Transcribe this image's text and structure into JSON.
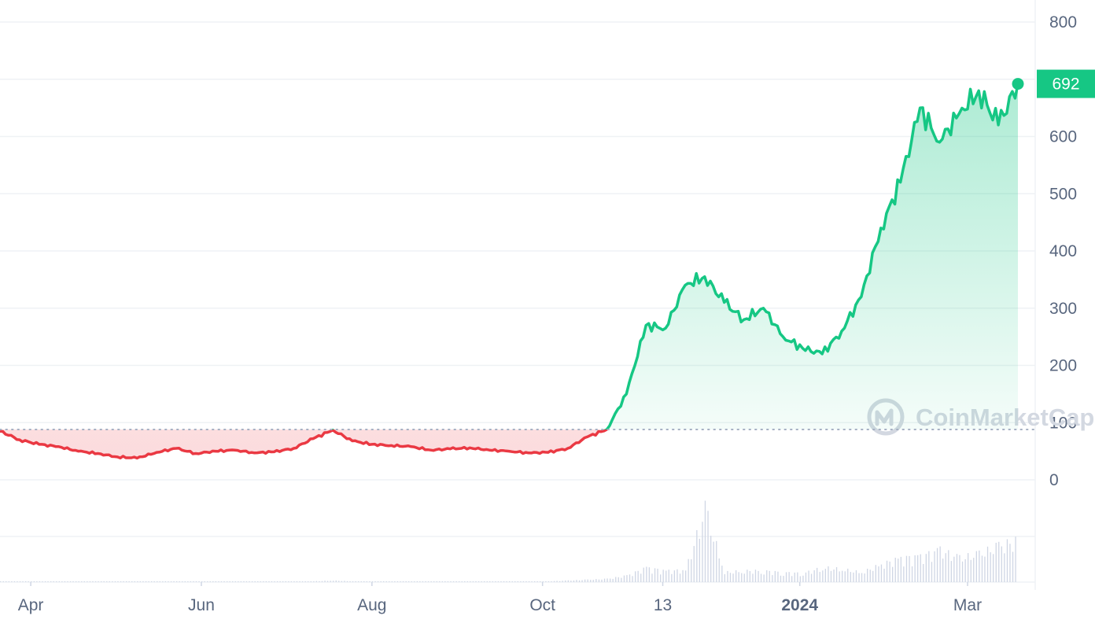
{
  "chart_data": {
    "type": "line",
    "x": [
      "2023-03-21",
      "2023-03-28",
      "2023-04-04",
      "2023-04-11",
      "2023-04-18",
      "2023-04-25",
      "2023-05-02",
      "2023-05-09",
      "2023-05-16",
      "2023-05-23",
      "2023-05-30",
      "2023-06-06",
      "2023-06-13",
      "2023-06-20",
      "2023-06-27",
      "2023-07-04",
      "2023-07-11",
      "2023-07-18",
      "2023-07-25",
      "2023-08-01",
      "2023-08-08",
      "2023-08-15",
      "2023-08-22",
      "2023-08-29",
      "2023-09-05",
      "2023-09-12",
      "2023-09-19",
      "2023-09-26",
      "2023-10-03",
      "2023-10-10",
      "2023-10-17",
      "2023-10-24",
      "2023-10-31",
      "2023-11-07",
      "2023-11-14",
      "2023-11-21",
      "2023-11-28",
      "2023-12-05",
      "2023-12-12",
      "2023-12-19",
      "2023-12-26",
      "2024-01-02",
      "2024-01-09",
      "2024-01-16",
      "2024-01-23",
      "2024-01-30",
      "2024-02-06",
      "2024-02-13",
      "2024-02-20",
      "2024-02-27",
      "2024-03-05",
      "2024-03-12",
      "2024-03-19"
    ],
    "series": [
      {
        "values": [
          85,
          70,
          62,
          58,
          50,
          46,
          40,
          38,
          48,
          55,
          46,
          50,
          52,
          47,
          49,
          55,
          72,
          87,
          68,
          62,
          60,
          58,
          52,
          54,
          56,
          52,
          50,
          47,
          48,
          55,
          75,
          88,
          150,
          270,
          265,
          340,
          355,
          310,
          280,
          300,
          250,
          230,
          220,
          260,
          320,
          440,
          520,
          650,
          590,
          640,
          680,
          620,
          692
        ]
      }
    ],
    "volume": [
      1,
      1,
      1,
      1,
      1,
      1,
      1,
      1,
      1,
      1,
      1,
      1,
      1,
      1,
      1,
      1,
      1,
      2,
      1,
      1,
      1,
      1,
      1,
      1,
      1,
      1,
      1,
      1,
      1,
      2,
      3,
      4,
      8,
      18,
      14,
      15,
      90,
      12,
      14,
      14,
      12,
      11,
      18,
      16,
      12,
      22,
      30,
      32,
      40,
      30,
      35,
      45,
      52
    ],
    "baseline": 88,
    "ylim": [
      0,
      800
    ],
    "y_ticks": [
      "800",
      "600",
      "500",
      "400",
      "300",
      "200",
      "100",
      "0"
    ],
    "x_ticks": [
      {
        "label": "Apr",
        "date": "2023-04-01",
        "bold": false
      },
      {
        "label": "Jun",
        "date": "2023-06-01",
        "bold": false
      },
      {
        "label": "Aug",
        "date": "2023-08-01",
        "bold": false
      },
      {
        "label": "Oct",
        "date": "2023-10-01",
        "bold": false
      },
      {
        "label": "13",
        "date": "2023-11-13",
        "bold": false
      },
      {
        "label": "2024",
        "date": "2024-01-01",
        "bold": true
      },
      {
        "label": "Mar",
        "date": "2024-03-01",
        "bold": false
      }
    ],
    "last_value_label": "692",
    "grid": true,
    "colors": {
      "up": "#16c784",
      "down": "#ea3943",
      "grid": "#eff2f5",
      "tick": "#58667e",
      "baseline": "#a6b0c3",
      "volume": "#cfd6e4"
    }
  },
  "watermark": {
    "text": "CoinMarketCap"
  }
}
